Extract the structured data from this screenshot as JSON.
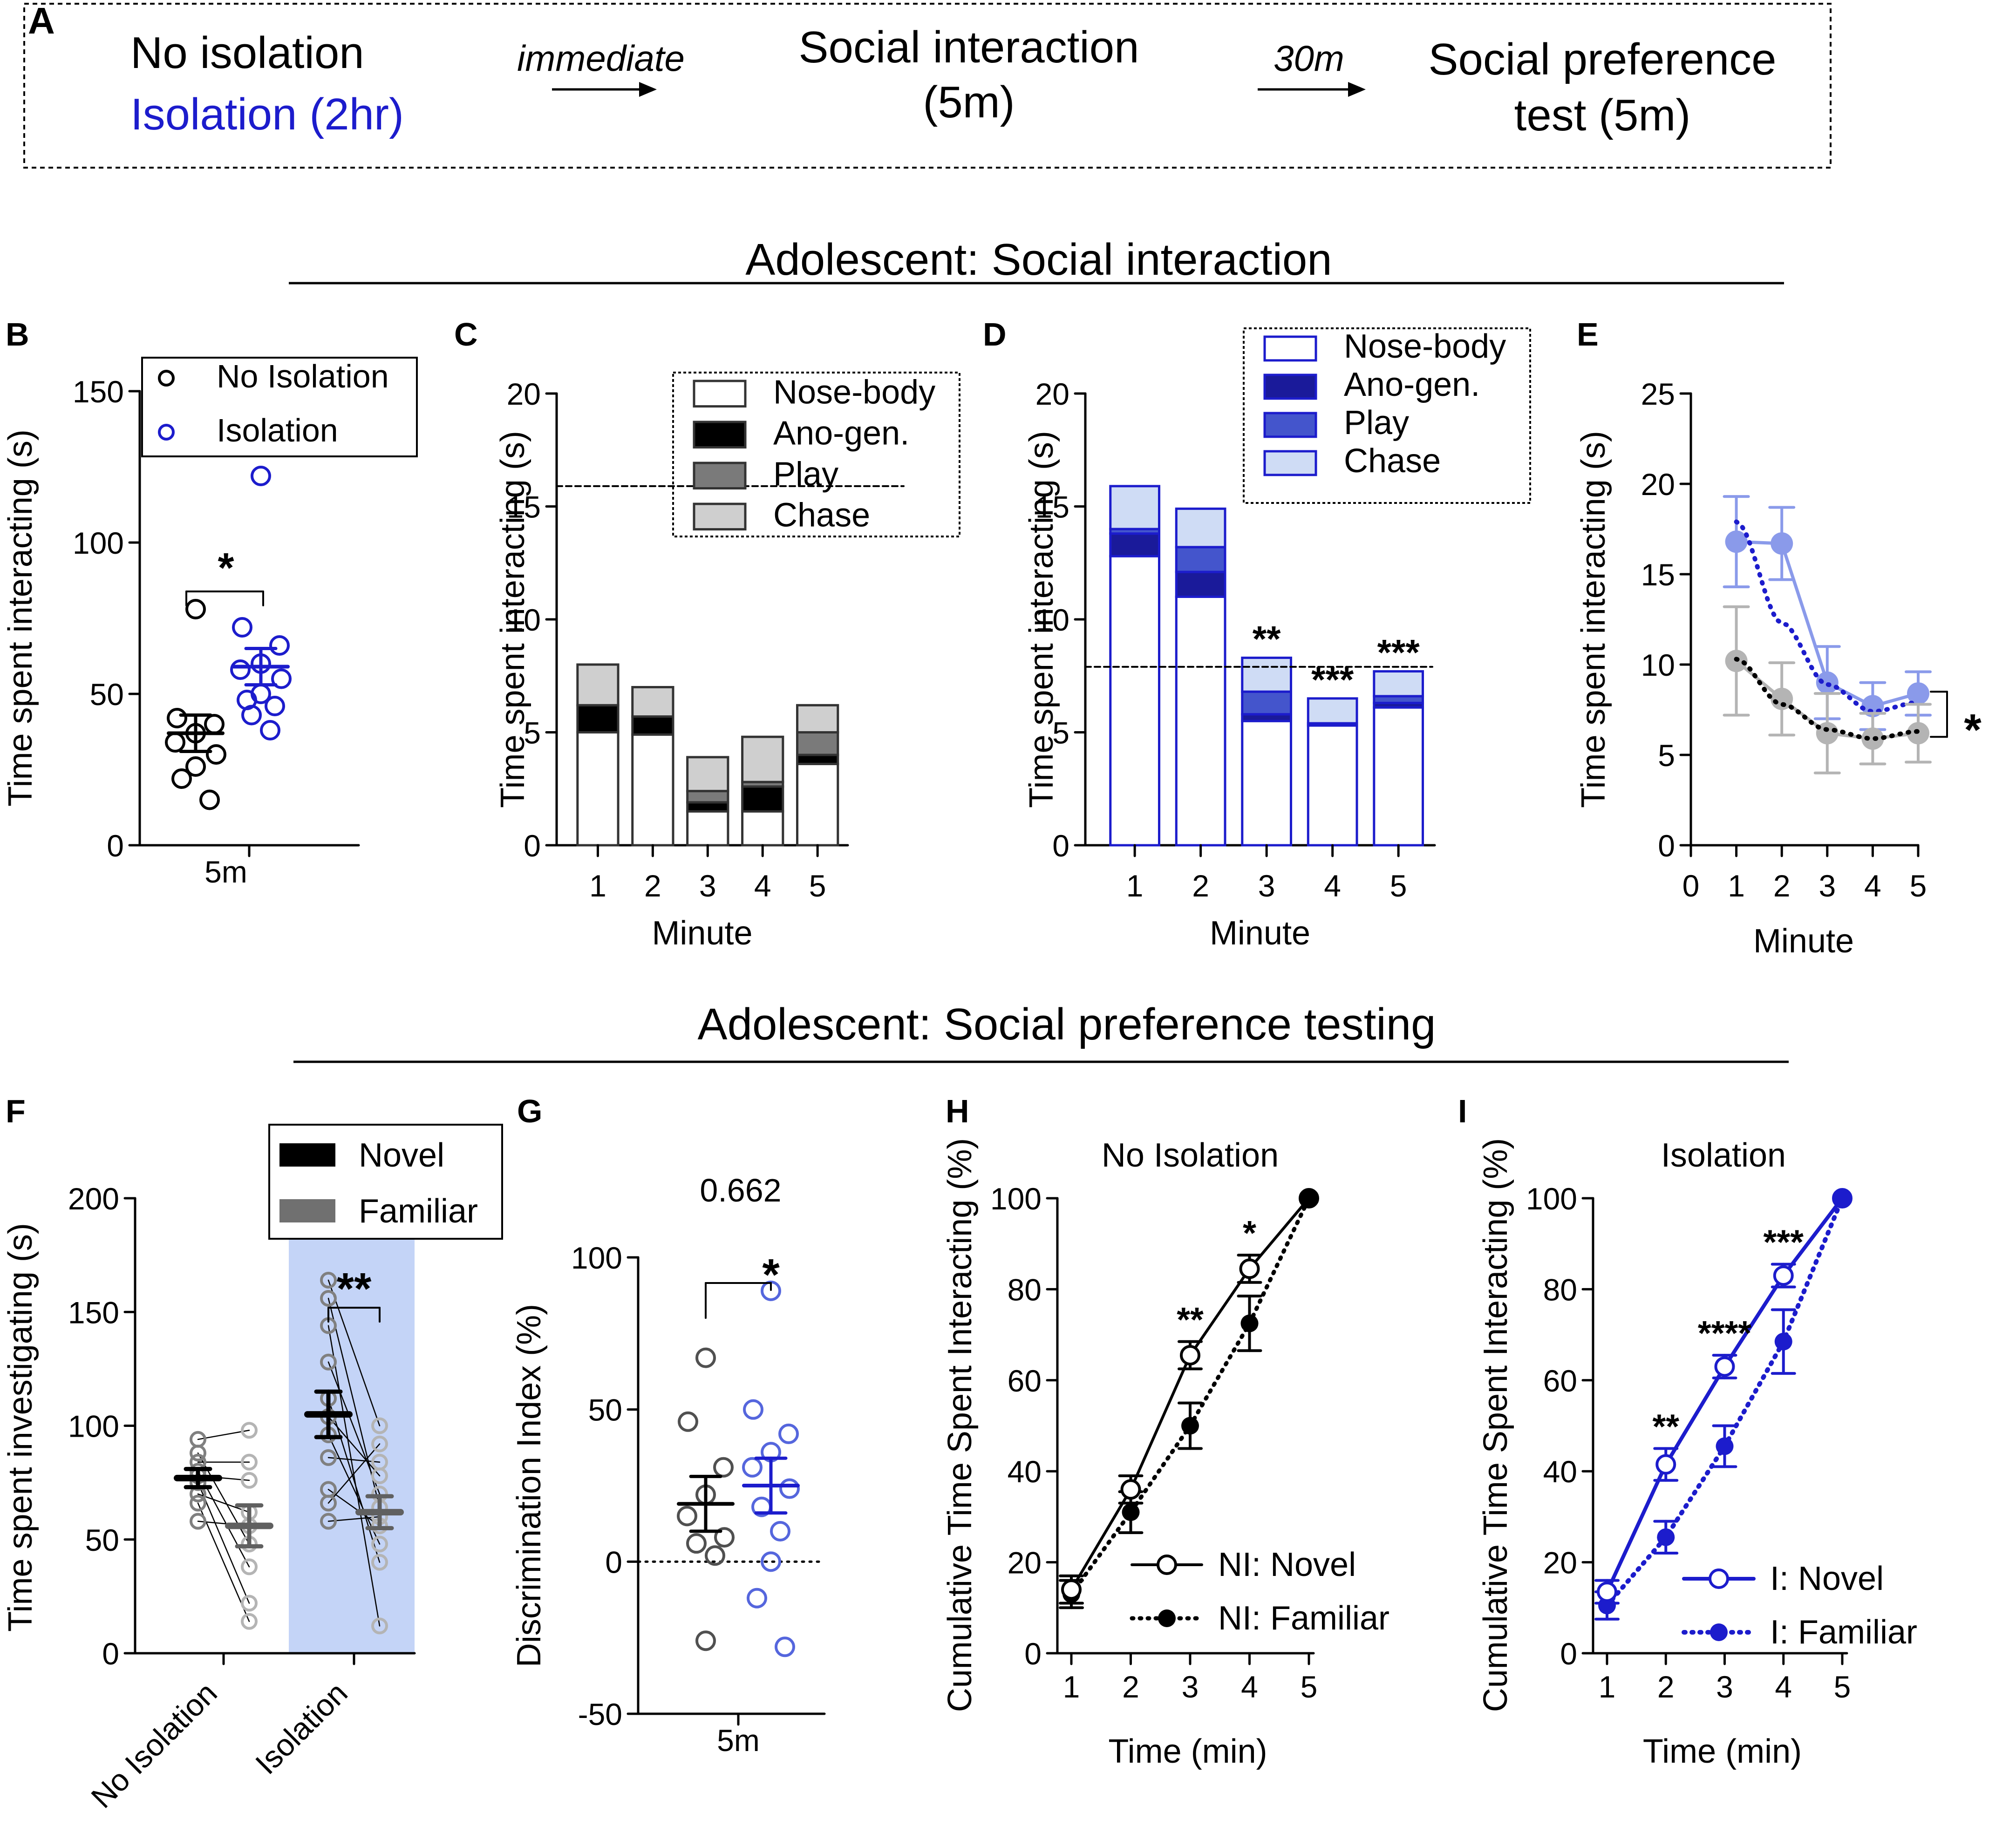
{
  "colors": {
    "black": "#000000",
    "blue": "#1c1ccc",
    "light_blue": "#8a9aea",
    "grey": "#808080",
    "light_grey": "#b4b4b4",
    "shade": "#c4d4f7",
    "nose_fill": "#ffffff",
    "ano_black": "#000000",
    "play_grey": "#7a7a7a",
    "chase_grey": "#cfcfcf",
    "ano_blue": "#1a1a9a",
    "play_blue": "#4455cc",
    "chase_blue": "#cfdcf5"
  },
  "panel_labels": {
    "A": "A",
    "B": "B",
    "C": "C",
    "D": "D",
    "E": "E",
    "F": "F",
    "G": "G",
    "H": "H",
    "I": "I"
  },
  "schematic": {
    "group1": "No isolation",
    "group2": "Isolation (2hr)",
    "arrow1": "immediate",
    "step1_line1": "Social interaction",
    "step1_line2": "(5m)",
    "arrow2": "30m",
    "step2_line1": "Social preference",
    "step2_line2": "test (5m)"
  },
  "section_titles": {
    "interaction": "Adolescent: Social interaction",
    "preference": "Adolescent: Social preference testing"
  },
  "chart_data": [
    {
      "panel": "B",
      "type": "scatter",
      "ylabel": "Time spent interacting (s)",
      "xlabel": "5m",
      "ylim": [
        0,
        150
      ],
      "yticks": [
        "0",
        "50",
        "100",
        "150"
      ],
      "legend": [
        "No Isolation",
        "Isolation"
      ],
      "significance": "*",
      "series": [
        {
          "name": "No Isolation",
          "mean": 37,
          "sem": 6,
          "points": [
            78,
            42,
            40,
            37,
            34,
            30,
            26,
            22,
            15
          ]
        },
        {
          "name": "Isolation",
          "mean": 59,
          "sem": 6,
          "points": [
            122,
            72,
            66,
            60,
            58,
            55,
            50,
            48,
            46,
            43,
            38
          ]
        }
      ]
    },
    {
      "panel": "C",
      "type": "bar",
      "stacked": true,
      "ylabel": "Time spent interacting (s)",
      "xlabel": "Minute",
      "ylim": [
        0,
        20
      ],
      "yticks": [
        "0",
        "5",
        "10",
        "15",
        "20"
      ],
      "categories": [
        "1",
        "2",
        "3",
        "4",
        "5"
      ],
      "reference_line": 15.9,
      "legend": [
        "Nose-body",
        "Ano-gen.",
        "Play",
        "Chase"
      ],
      "series": [
        {
          "name": "Nose-body",
          "values": [
            5.0,
            4.9,
            1.5,
            1.5,
            3.6
          ]
        },
        {
          "name": "Ano-gen.",
          "values": [
            1.2,
            0.8,
            0.4,
            1.1,
            0.4
          ]
        },
        {
          "name": "Play",
          "values": [
            0.0,
            0.0,
            0.5,
            0.2,
            1.0
          ]
        },
        {
          "name": "Chase",
          "values": [
            1.8,
            1.3,
            1.5,
            2.0,
            1.2
          ]
        }
      ]
    },
    {
      "panel": "D",
      "type": "bar",
      "stacked": true,
      "ylabel": "Time spent interacting (s)",
      "xlabel": "Minute",
      "ylim": [
        0,
        20
      ],
      "yticks": [
        "0",
        "5",
        "10",
        "15",
        "20"
      ],
      "categories": [
        "1",
        "2",
        "3",
        "4",
        "5"
      ],
      "reference_line": 7.9,
      "legend": [
        "Nose-body",
        "Ano-gen.",
        "Play",
        "Chase"
      ],
      "significance": [
        "",
        "",
        "**",
        "***",
        "***"
      ],
      "series": [
        {
          "name": "Nose-body",
          "values": [
            12.8,
            11.0,
            5.5,
            5.3,
            6.1
          ]
        },
        {
          "name": "Ano-gen.",
          "values": [
            1.0,
            1.1,
            0.3,
            0.0,
            0.2
          ]
        },
        {
          "name": "Play",
          "values": [
            0.2,
            1.1,
            1.0,
            0.1,
            0.3
          ]
        },
        {
          "name": "Chase",
          "values": [
            1.9,
            1.7,
            1.5,
            1.1,
            1.1
          ]
        }
      ]
    },
    {
      "panel": "E",
      "type": "line",
      "ylabel": "Time spent interacting (s)",
      "xlabel": "Minute",
      "ylim": [
        0,
        25
      ],
      "xlim": [
        0,
        5
      ],
      "yticks": [
        "0",
        "5",
        "10",
        "15",
        "20",
        "25"
      ],
      "xticks": [
        "0",
        "1",
        "2",
        "3",
        "4",
        "5"
      ],
      "significance": "*",
      "series": [
        {
          "name": "Isolation",
          "x": [
            1,
            2,
            3,
            4,
            5
          ],
          "y": [
            16.8,
            16.7,
            9.0,
            7.7,
            8.4
          ],
          "sem": [
            2.5,
            2.0,
            2.0,
            1.3,
            1.2
          ],
          "fit": [
            17.9,
            12.3,
            8.9,
            7.4,
            7.9
          ]
        },
        {
          "name": "No Isolation",
          "x": [
            1,
            2,
            3,
            4,
            5
          ],
          "y": [
            10.2,
            8.1,
            6.2,
            5.9,
            6.2
          ],
          "sem": [
            3.0,
            2.0,
            2.2,
            1.4,
            1.6
          ],
          "fit": [
            10.3,
            7.8,
            6.4,
            5.9,
            6.3
          ]
        }
      ]
    },
    {
      "panel": "F",
      "type": "scatter",
      "paired": true,
      "ylabel": "Time spent investigating (s)",
      "ylim": [
        0,
        200
      ],
      "yticks": [
        "0",
        "50",
        "100",
        "150",
        "200"
      ],
      "categories": [
        "No Isolation",
        "Isolation"
      ],
      "legend": [
        "Novel",
        "Familiar"
      ],
      "significance": "**",
      "groups": [
        {
          "name": "No Isolation",
          "novel_mean": 77,
          "novel_sem": 4,
          "familiar_mean": 56,
          "familiar_sem": 9,
          "novel": [
            94,
            88,
            84,
            80,
            78,
            75,
            70,
            66,
            58
          ],
          "familiar": [
            98,
            84,
            76,
            62,
            56,
            48,
            38,
            22,
            14
          ]
        },
        {
          "name": "Isolation",
          "novel_mean": 105,
          "novel_sem": 10,
          "familiar_mean": 62,
          "familiar_sem": 7,
          "novel": [
            164,
            156,
            144,
            128,
            112,
            104,
            96,
            86,
            72,
            66,
            58
          ],
          "familiar": [
            100,
            92,
            84,
            78,
            70,
            64,
            60,
            56,
            48,
            40,
            12
          ]
        }
      ]
    },
    {
      "panel": "G",
      "type": "scatter",
      "ylabel": "Discrimination Index (%)",
      "xlabel": "5m",
      "ylim": [
        -50,
        100
      ],
      "yticks": [
        "-50",
        "0",
        "50",
        "100"
      ],
      "p_value": "0.662",
      "significance": "*",
      "series": [
        {
          "name": "No Isolation",
          "mean": 19,
          "sem": 9,
          "points": [
            67,
            46,
            31,
            22,
            15,
            8,
            6,
            2,
            -26
          ]
        },
        {
          "name": "Isolation",
          "mean": 25,
          "sem": 9,
          "points": [
            89,
            50,
            42,
            36,
            31,
            24,
            18,
            10,
            0,
            -12,
            -28
          ]
        }
      ]
    },
    {
      "panel": "H",
      "type": "line",
      "title": "No Isolation",
      "ylabel": "Cumulative Time Spent Interacting (%)",
      "xlabel": "Time (min)",
      "ylim": [
        0,
        100
      ],
      "xlim": [
        1,
        5
      ],
      "yticks": [
        "0",
        "20",
        "40",
        "60",
        "80",
        "100"
      ],
      "xticks": [
        "1",
        "2",
        "3",
        "4",
        "5"
      ],
      "legend": [
        "NI: Novel",
        "NI: Familiar"
      ],
      "significance": [
        "",
        "",
        "**",
        "*",
        ""
      ],
      "series": [
        {
          "name": "NI: Novel",
          "x": [
            1,
            2,
            3,
            4,
            5
          ],
          "y": [
            14,
            36,
            65.5,
            84.5,
            100
          ],
          "sem": [
            3,
            3,
            3,
            3,
            0
          ]
        },
        {
          "name": "NI: Familiar",
          "x": [
            1,
            2,
            3,
            4,
            5
          ],
          "y": [
            13,
            31,
            50,
            72.5,
            100
          ],
          "sem": [
            3,
            4.5,
            5,
            6,
            0
          ]
        }
      ]
    },
    {
      "panel": "I",
      "type": "line",
      "title": "Isolation",
      "ylabel": "Cumulative Time Spent Interacting (%)",
      "xlabel": "Time (min)",
      "ylim": [
        0,
        100
      ],
      "xlim": [
        1,
        5
      ],
      "yticks": [
        "0",
        "20",
        "40",
        "60",
        "80",
        "100"
      ],
      "xticks": [
        "1",
        "2",
        "3",
        "4",
        "5"
      ],
      "legend": [
        "I: Novel",
        "I: Familiar"
      ],
      "significance": [
        "",
        "**",
        "****",
        "***",
        ""
      ],
      "series": [
        {
          "name": "I: Novel",
          "x": [
            1,
            2,
            3,
            4,
            5
          ],
          "y": [
            13.5,
            41.5,
            63,
            83,
            100
          ],
          "sem": [
            2.5,
            3.5,
            2.5,
            2.5,
            0
          ]
        },
        {
          "name": "I: Familiar",
          "x": [
            1,
            2,
            3,
            4,
            5
          ],
          "y": [
            10.5,
            25.5,
            45.5,
            68.5,
            100
          ],
          "sem": [
            3,
            3.5,
            4.5,
            7,
            0
          ]
        }
      ]
    }
  ]
}
